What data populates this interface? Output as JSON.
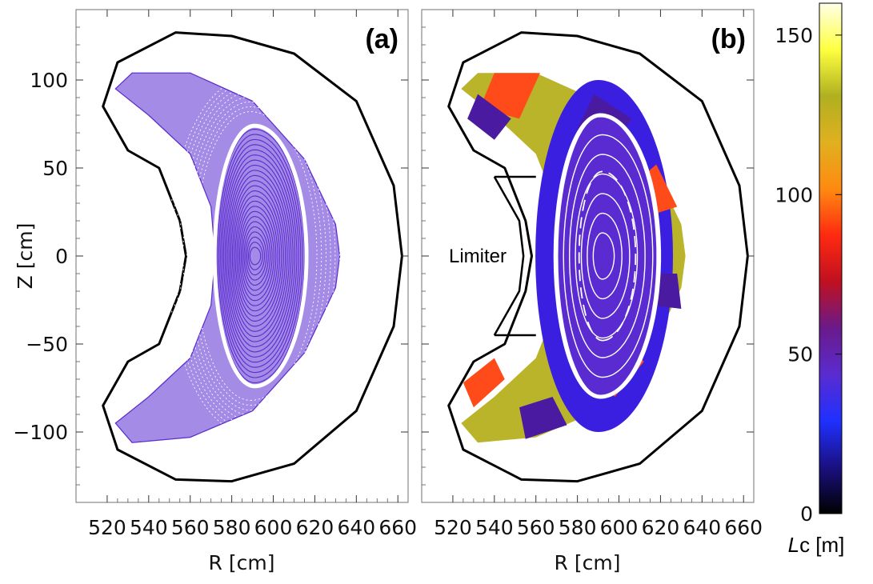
{
  "chart_data": [
    {
      "panel": "(a)",
      "type": "scatter",
      "xlabel": "R [cm]",
      "ylabel": "Z [cm]",
      "xlim": [
        505,
        665
      ],
      "ylim": [
        -140,
        140
      ],
      "x_ticks": [
        520,
        540,
        560,
        580,
        600,
        620,
        640,
        660
      ],
      "y_ticks": [
        100,
        50,
        0,
        -50,
        -100
      ],
      "y_tick_labels": [
        "100",
        "50",
        "0",
        "−50",
        "−100"
      ],
      "marker_color": "#5a2bd0",
      "wall_color": "#000000",
      "magnetic_axis": [
        593,
        0
      ],
      "island_gaps": [
        {
          "r_in": 574,
          "r_out": 606,
          "z_half": 72
        },
        {
          "r_in": 578,
          "r_out": 610,
          "z_half": 70
        }
      ],
      "wall_outline": [
        [
          553,
          127
        ],
        [
          580,
          125
        ],
        [
          610,
          115
        ],
        [
          640,
          88
        ],
        [
          658,
          40
        ],
        [
          662,
          0
        ],
        [
          658,
          -40
        ],
        [
          640,
          -88
        ],
        [
          610,
          -118
        ],
        [
          580,
          -128
        ],
        [
          553,
          -127
        ],
        [
          525,
          -110
        ],
        [
          518,
          -85
        ],
        [
          530,
          -60
        ],
        [
          545,
          -50
        ],
        [
          555,
          -20
        ],
        [
          558,
          0
        ],
        [
          555,
          20
        ],
        [
          545,
          50
        ],
        [
          530,
          60
        ],
        [
          518,
          85
        ],
        [
          525,
          110
        ]
      ],
      "plasma_outline": [
        [
          532,
          104
        ],
        [
          560,
          104
        ],
        [
          590,
          88
        ],
        [
          615,
          55
        ],
        [
          630,
          18
        ],
        [
          632,
          0
        ],
        [
          630,
          -18
        ],
        [
          615,
          -55
        ],
        [
          590,
          -88
        ],
        [
          560,
          -103
        ],
        [
          532,
          -106
        ],
        [
          524,
          -95
        ],
        [
          540,
          -80
        ],
        [
          560,
          -58
        ],
        [
          570,
          -28
        ],
        [
          572,
          0
        ],
        [
          570,
          28
        ],
        [
          560,
          58
        ],
        [
          540,
          80
        ],
        [
          524,
          95
        ]
      ]
    },
    {
      "panel": "(b)",
      "type": "scatter",
      "xlabel": "R [cm]",
      "xlim": [
        505,
        665
      ],
      "ylim": [
        -140,
        140
      ],
      "x_ticks": [
        520,
        540,
        560,
        580,
        600,
        620,
        640,
        660
      ],
      "annotation": "Limiter",
      "limiter_z": [
        45,
        -45
      ],
      "limiter_r": [
        540,
        560
      ],
      "region_colors": [
        "#3b1fe0",
        "#ff4a1a",
        "#4a1aa0",
        "#b9b42a"
      ],
      "core_color": "#5a2bd0",
      "flux_surface_color": "#ffffff"
    }
  ],
  "colorbar": {
    "label": "Lc [m]",
    "label_italic": "L",
    "label_rest": "c [m]",
    "range": [
      0,
      160
    ],
    "ticks": [
      0,
      50,
      100,
      150
    ],
    "stops": [
      "#000000",
      "#1a1080",
      "#2030ff",
      "#5a2bd0",
      "#6a1a8a",
      "#c01020",
      "#ff2a10",
      "#ff8a10",
      "#e0b020",
      "#b0b020",
      "#ffff40",
      "#ffffe8"
    ]
  }
}
